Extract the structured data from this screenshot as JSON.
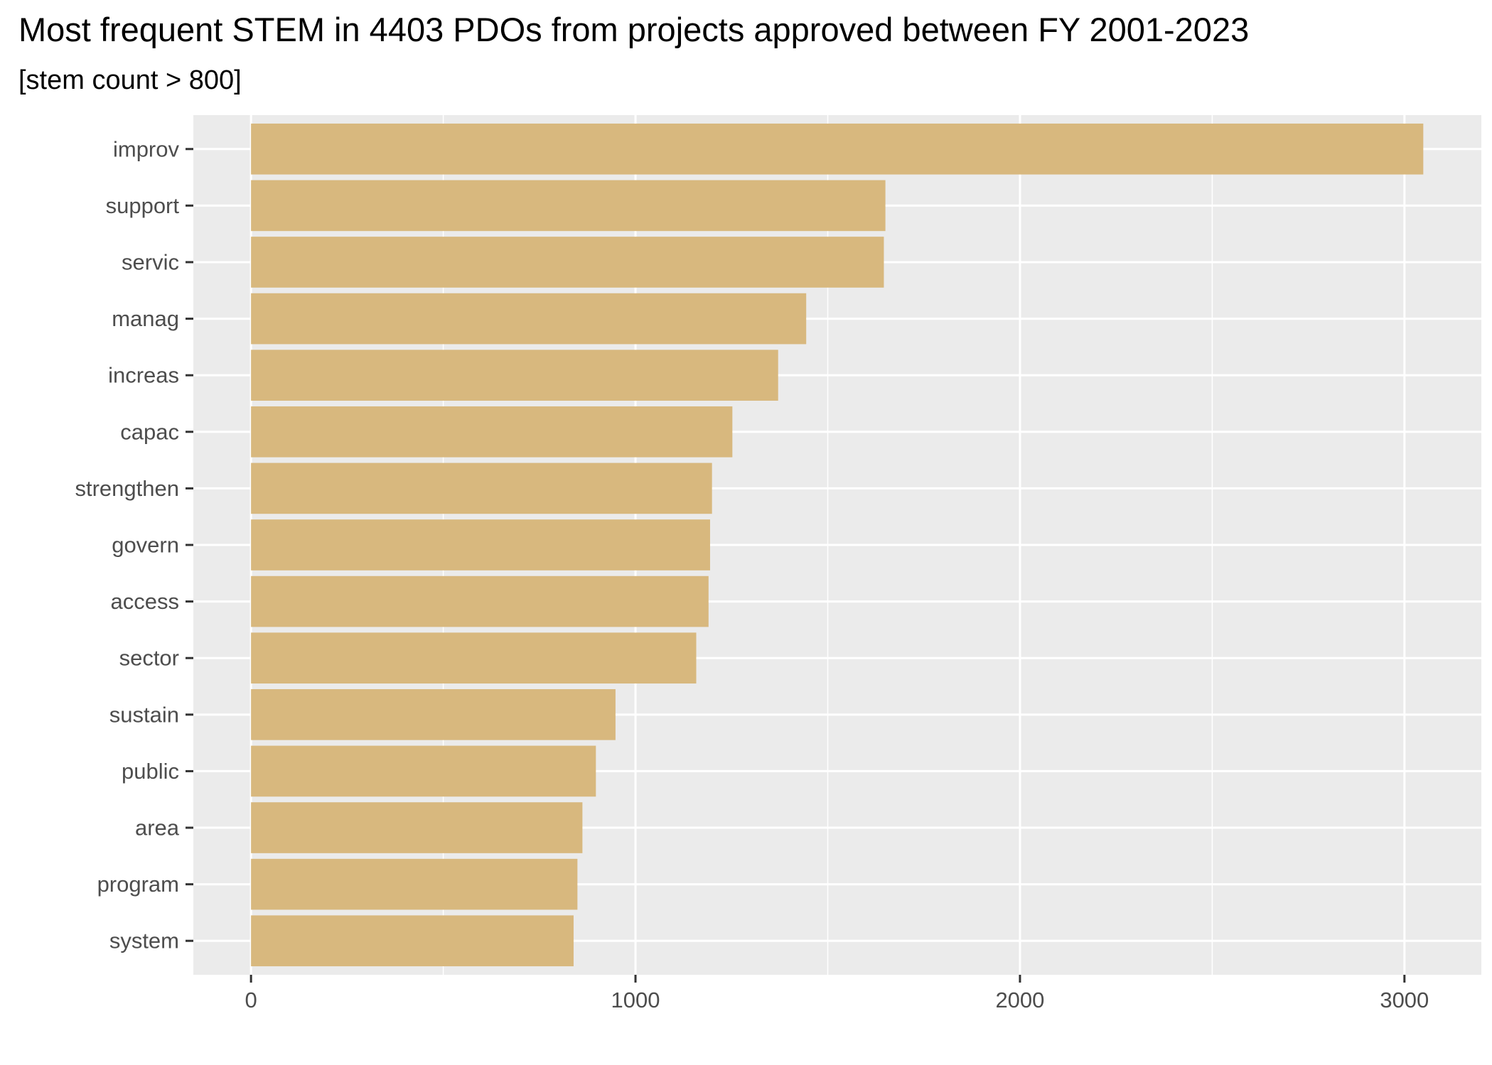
{
  "chart_data": {
    "type": "bar",
    "orientation": "horizontal",
    "title": "Most frequent STEM in 4403 PDOs from projects approved between FY 2001-2023",
    "subtitle": "[stem count > 800]",
    "xlabel": "",
    "ylabel": "",
    "categories": [
      "improv",
      "support",
      "servic",
      "manag",
      "increas",
      "capac",
      "strengthen",
      "govern",
      "access",
      "sector",
      "sustain",
      "public",
      "area",
      "program",
      "system"
    ],
    "values": [
      3049,
      1650,
      1646,
      1444,
      1371,
      1252,
      1199,
      1194,
      1190,
      1158,
      948,
      897,
      862,
      849,
      839
    ],
    "xlim": [
      -150,
      3200
    ],
    "x_ticks": [
      0,
      1000,
      2000,
      3000
    ],
    "x_tick_labels": [
      "0",
      "1000",
      "2000",
      "3000"
    ],
    "grid": true,
    "legend": "none",
    "colors": {
      "bar": "#d8b87e",
      "panel": "#ebebeb",
      "grid": "#ffffff"
    }
  }
}
